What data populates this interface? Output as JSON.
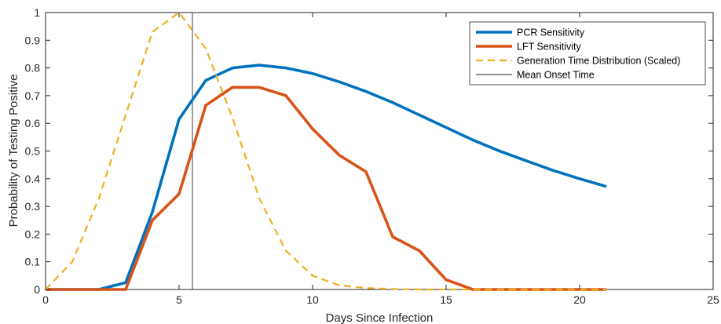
{
  "chart_data": {
    "type": "line",
    "xlabel": "Days Since Infection",
    "ylabel": "Probability of Testing Positive",
    "xlim": [
      0,
      25
    ],
    "ylim": [
      0,
      1
    ],
    "xticks": [
      0,
      5,
      10,
      15,
      20,
      25
    ],
    "yticks": [
      0,
      0.1,
      0.2,
      0.3,
      0.4,
      0.5,
      0.6,
      0.7,
      0.8,
      0.9,
      1
    ],
    "grid": false,
    "legend_position": "top-right",
    "mean_onset_time": 5.5,
    "series": [
      {
        "name": "PCR Sensitivity",
        "color": "#0072BD",
        "style": "solid",
        "x": [
          0,
          1,
          2,
          3,
          4,
          5,
          6,
          7,
          8,
          9,
          10,
          11,
          12,
          13,
          14,
          15,
          16,
          17,
          18,
          19,
          20,
          21
        ],
        "y": [
          0,
          0,
          0,
          0.025,
          0.28,
          0.615,
          0.755,
          0.8,
          0.81,
          0.8,
          0.78,
          0.75,
          0.715,
          0.675,
          0.63,
          0.585,
          0.54,
          0.5,
          0.465,
          0.43,
          0.4,
          0.372
        ]
      },
      {
        "name": "LFT Sensitivity",
        "color": "#D95319",
        "style": "solid",
        "x": [
          0,
          1,
          2,
          3,
          4,
          5,
          6,
          7,
          8,
          9,
          10,
          11,
          12,
          13,
          14,
          15,
          16,
          17,
          18,
          19,
          20,
          21
        ],
        "y": [
          0,
          0,
          0,
          0,
          0.25,
          0.345,
          0.665,
          0.73,
          0.73,
          0.7,
          0.58,
          0.485,
          0.425,
          0.19,
          0.14,
          0.035,
          0,
          0,
          0,
          0,
          0,
          0
        ]
      },
      {
        "name": "Generation Time Distribution (Scaled)",
        "color": "#EDB120",
        "style": "dashed",
        "x": [
          0,
          1,
          2,
          3,
          4,
          5,
          6,
          7,
          8,
          9,
          10,
          11,
          12,
          13,
          14,
          15,
          16,
          17,
          18,
          19,
          20,
          21
        ],
        "y": [
          0,
          0.1,
          0.33,
          0.63,
          0.93,
          1.0,
          0.87,
          0.62,
          0.33,
          0.14,
          0.05,
          0.015,
          0.005,
          0.002,
          0,
          0,
          0,
          0,
          0,
          0,
          0,
          0
        ]
      }
    ],
    "reference_lines": [
      {
        "name": "Mean Onset Time",
        "color": "#262626",
        "orientation": "vertical"
      }
    ]
  }
}
